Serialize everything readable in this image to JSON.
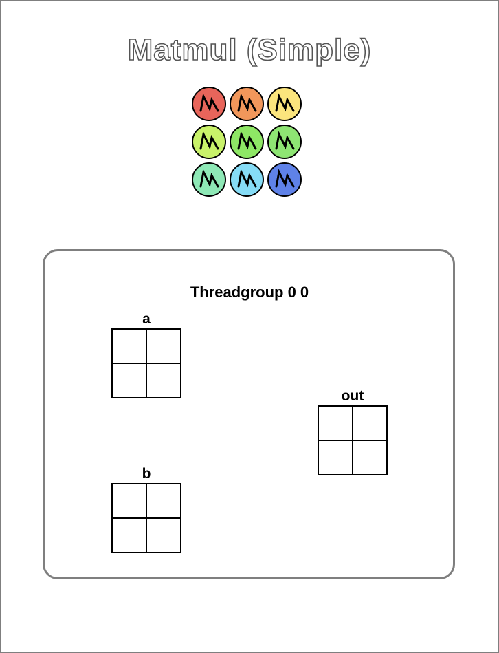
{
  "title": "Matmul (Simple)",
  "threads": [
    {
      "color": "#e8655b",
      "icon": "lightning-icon"
    },
    {
      "color": "#f1975b",
      "icon": "lightning-icon"
    },
    {
      "color": "#fbe57d",
      "icon": "lightning-icon"
    },
    {
      "color": "#c9f26a",
      "icon": "lightning-icon"
    },
    {
      "color": "#8ee765",
      "icon": "lightning-icon"
    },
    {
      "color": "#8ee573",
      "icon": "lightning-icon"
    },
    {
      "color": "#8ee8b6",
      "icon": "lightning-icon"
    },
    {
      "color": "#86dcf6",
      "icon": "lightning-icon"
    },
    {
      "color": "#5f82e8",
      "icon": "lightning-icon"
    }
  ],
  "threadgroup": {
    "label": "Threadgroup 0 0",
    "matrices": {
      "a": {
        "label": "a",
        "rows": 2,
        "cols": 2
      },
      "b": {
        "label": "b",
        "rows": 2,
        "cols": 2
      },
      "out": {
        "label": "out",
        "rows": 2,
        "cols": 2
      }
    }
  }
}
